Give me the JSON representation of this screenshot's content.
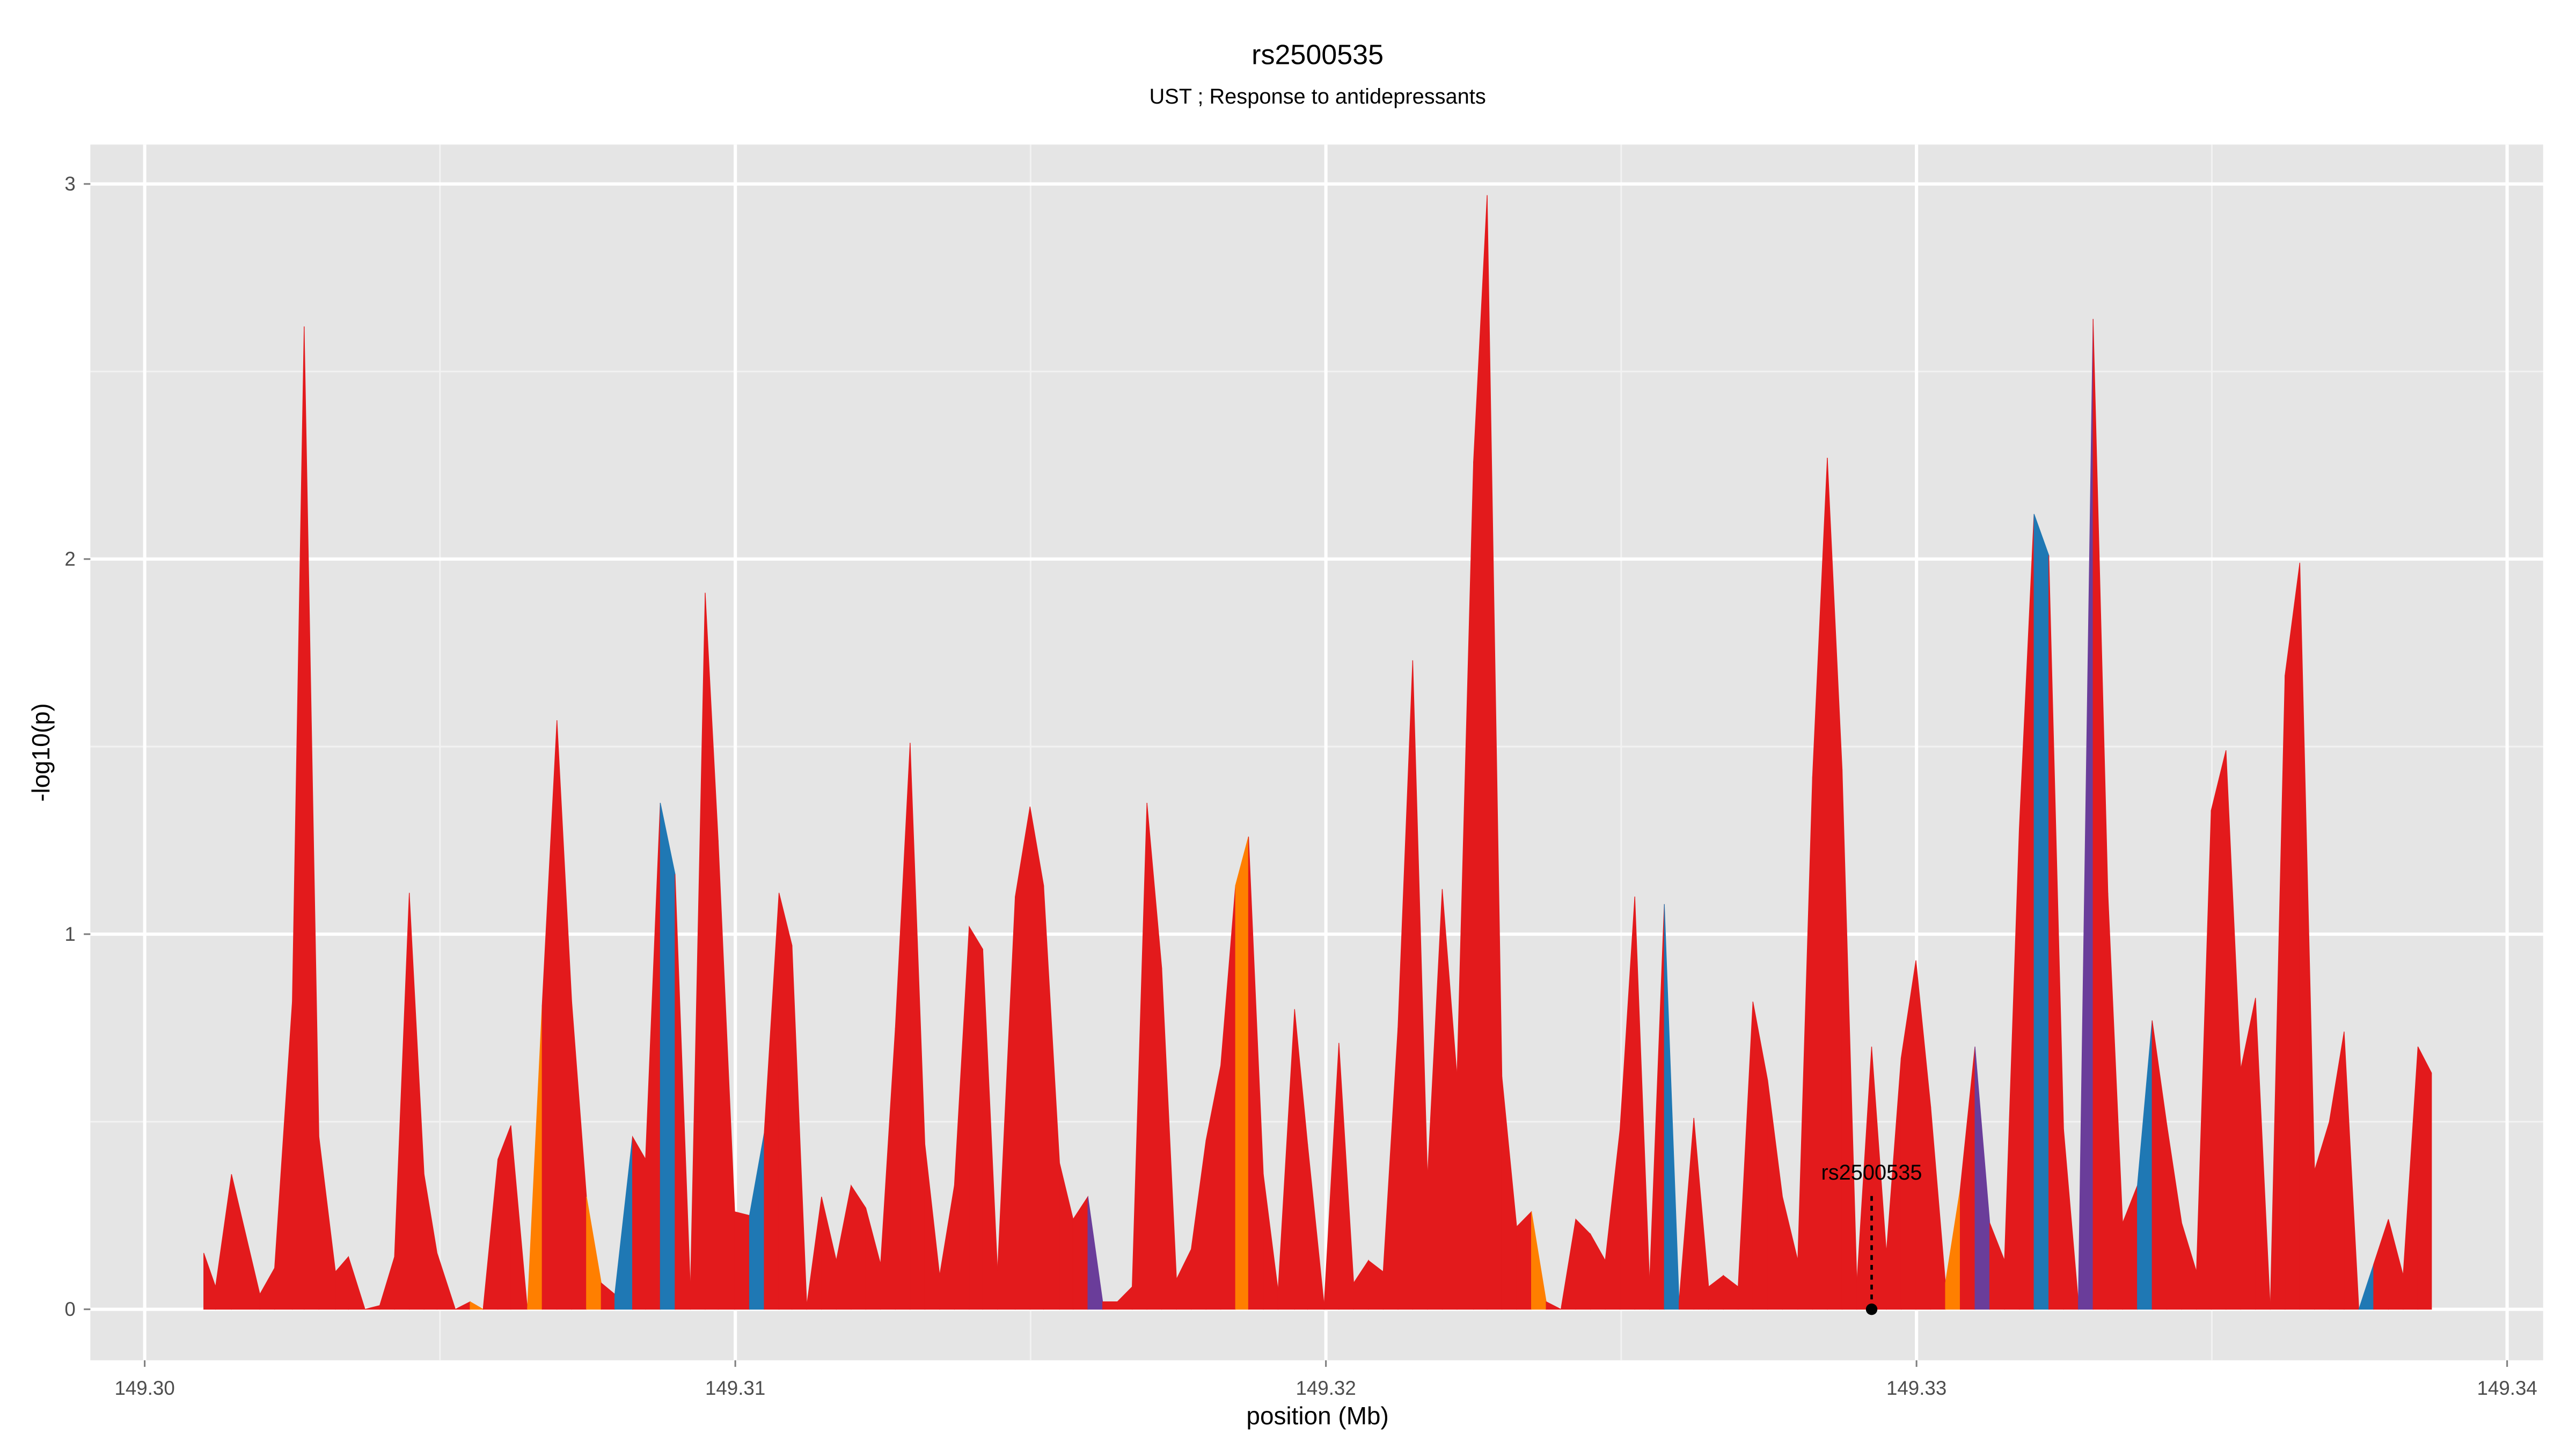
{
  "chart_data": {
    "type": "area",
    "title": "rs2500535",
    "subtitle": "UST ; Response to antidepressants",
    "x_label": "position (Mb)",
    "y_label": "-log10(p)",
    "xlim": [
      149.29908,
      149.34061
    ],
    "ylim": [
      -0.136,
      3.105
    ],
    "xticks": [
      {
        "value": 149.3,
        "label": "149.30"
      },
      {
        "value": 149.31,
        "label": "149.31"
      },
      {
        "value": 149.32,
        "label": "149.32"
      },
      {
        "value": 149.33,
        "label": "149.33"
      },
      {
        "value": 149.34,
        "label": "149.34"
      }
    ],
    "yticks": [
      0,
      1,
      2,
      3
    ],
    "grid": true,
    "x": [
      149.301,
      149.3012,
      149.30147,
      149.30195,
      149.3022,
      149.3025,
      149.3027,
      149.30295,
      149.30323,
      149.30345,
      149.30373,
      149.30398,
      149.30423,
      149.30448,
      149.30473,
      149.30495,
      149.30526,
      149.30551,
      149.30573,
      149.30598,
      149.3062,
      149.30648,
      149.30673,
      149.30698,
      149.30723,
      149.30748,
      149.30773,
      149.30796,
      149.30826,
      149.30848,
      149.30873,
      149.30898,
      149.30924,
      149.30949,
      149.30971,
      149.30999,
      149.31024,
      149.31049,
      149.31074,
      149.31096,
      149.31121,
      149.31146,
      149.31171,
      149.31196,
      149.31221,
      149.31246,
      149.31271,
      149.31296,
      149.31321,
      149.31346,
      149.31371,
      149.31396,
      149.31419,
      149.31444,
      149.31474,
      149.31499,
      149.31522,
      149.31549,
      149.31572,
      149.31597,
      149.31622,
      149.31647,
      149.31672,
      149.31697,
      149.31722,
      149.31747,
      149.31772,
      149.31797,
      149.31822,
      149.31847,
      149.31869,
      149.31894,
      149.31919,
      149.31947,
      149.31969,
      149.31997,
      149.32022,
      149.32047,
      149.32072,
      149.32097,
      149.32122,
      149.32147,
      149.32172,
      149.32197,
      149.32222,
      149.3225,
      149.32273,
      149.32298,
      149.32323,
      149.32348,
      149.32373,
      149.32398,
      149.32423,
      149.32448,
      149.32473,
      149.32498,
      149.32523,
      149.32548,
      149.32573,
      149.32598,
      149.32623,
      149.32648,
      149.32673,
      149.32698,
      149.32723,
      149.32748,
      149.32773,
      149.32799,
      149.32824,
      149.32849,
      149.32874,
      149.32899,
      149.32924,
      149.32949,
      149.32974,
      149.32999,
      149.33024,
      149.33049,
      149.33074,
      149.33099,
      149.33124,
      149.33149,
      149.33174,
      149.33199,
      149.33224,
      149.33249,
      149.33274,
      149.33299,
      149.33324,
      149.33349,
      149.33374,
      149.33399,
      149.33424,
      149.33449,
      149.33474,
      149.33499,
      149.33524,
      149.33549,
      149.33574,
      149.33599,
      149.33624,
      149.33649,
      149.33674,
      149.33699,
      149.33724,
      149.33749,
      149.33774,
      149.33799,
      149.33824,
      149.33849,
      149.33872
    ],
    "values": [
      0.15,
      0.06,
      0.36,
      0.04,
      0.11,
      0.82,
      2.62,
      0.46,
      0.1,
      0.14,
      0.0,
      0.01,
      0.14,
      1.11,
      0.36,
      0.15,
      0.0,
      0.02,
      0.0,
      0.4,
      0.49,
      0.0,
      0.81,
      1.57,
      0.82,
      0.3,
      0.07,
      0.04,
      0.46,
      0.4,
      1.35,
      1.16,
      0.05,
      1.91,
      1.25,
      0.26,
      0.25,
      0.47,
      1.11,
      0.97,
      0.01,
      0.3,
      0.13,
      0.33,
      0.27,
      0.12,
      0.75,
      1.51,
      0.44,
      0.09,
      0.33,
      1.02,
      0.96,
      0.1,
      1.1,
      1.34,
      1.13,
      0.39,
      0.24,
      0.3,
      0.02,
      0.02,
      0.06,
      1.35,
      0.91,
      0.08,
      0.16,
      0.45,
      0.65,
      1.13,
      1.26,
      0.36,
      0.05,
      0.8,
      0.44,
      0.01,
      0.71,
      0.07,
      0.13,
      0.1,
      0.75,
      1.73,
      0.35,
      1.12,
      0.62,
      2.26,
      2.97,
      0.62,
      0.22,
      0.26,
      0.02,
      0.0,
      0.24,
      0.2,
      0.13,
      0.48,
      1.1,
      0.07,
      1.08,
      0.02,
      0.51,
      0.06,
      0.09,
      0.06,
      0.82,
      0.61,
      0.3,
      0.13,
      1.42,
      2.27,
      1.44,
      0.07,
      0.7,
      0.15,
      0.67,
      0.93,
      0.54,
      0.07,
      0.32,
      0.7,
      0.23,
      0.13,
      1.28,
      2.12,
      2.01,
      0.48,
      0.02,
      2.64,
      1.11,
      0.23,
      0.33,
      0.77,
      0.49,
      0.23,
      0.1,
      1.33,
      1.49,
      0.64,
      0.83,
      0.0,
      1.69,
      1.99,
      0.37,
      0.5,
      0.74,
      0.0,
      0.12,
      0.24,
      0.09,
      0.7,
      0.63
    ],
    "colors": [
      "#e31a1c",
      "#e31a1c",
      "#e31a1c",
      "#e31a1c",
      "#e31a1c",
      "#e31a1c",
      "#e31a1c",
      "#e31a1c",
      "#e31a1c",
      "#e31a1c",
      "#e31a1c",
      "#e31a1c",
      "#e31a1c",
      "#e31a1c",
      "#e31a1c",
      "#e31a1c",
      "#e31a1c",
      "#ff7f00",
      "#e31a1c",
      "#e31a1c",
      "#e31a1c",
      "#ff7f00",
      "#e31a1c",
      "#e31a1c",
      "#e31a1c",
      "#ff7f00",
      "#e31a1c",
      "#1f78b4",
      "#e31a1c",
      "#e31a1c",
      "#1f78b4",
      "#e31a1c",
      "#e31a1c",
      "#e31a1c",
      "#e31a1c",
      "#e31a1c",
      "#1f78b4",
      "#e31a1c",
      "#e31a1c",
      "#e31a1c",
      "#e31a1c",
      "#e31a1c",
      "#e31a1c",
      "#e31a1c",
      "#e31a1c",
      "#e31a1c",
      "#e31a1c",
      "#e31a1c",
      "#e31a1c",
      "#e31a1c",
      "#e31a1c",
      "#e31a1c",
      "#e31a1c",
      "#e31a1c",
      "#e31a1c",
      "#e31a1c",
      "#e31a1c",
      "#e31a1c",
      "#e31a1c",
      "#6a3d9a",
      "#e31a1c",
      "#e31a1c",
      "#e31a1c",
      "#e31a1c",
      "#e31a1c",
      "#e31a1c",
      "#e31a1c",
      "#e31a1c",
      "#e31a1c",
      "#ff7f00",
      "#e31a1c",
      "#e31a1c",
      "#e31a1c",
      "#e31a1c",
      "#e31a1c",
      "#e31a1c",
      "#e31a1c",
      "#e31a1c",
      "#e31a1c",
      "#e31a1c",
      "#e31a1c",
      "#e31a1c",
      "#e31a1c",
      "#e31a1c",
      "#e31a1c",
      "#e31a1c",
      "#e31a1c",
      "#e31a1c",
      "#e31a1c",
      "#ff7f00",
      "#e31a1c",
      "#e31a1c",
      "#e31a1c",
      "#e31a1c",
      "#e31a1c",
      "#e31a1c",
      "#e31a1c",
      "#e31a1c",
      "#1f78b4",
      "#e31a1c",
      "#e31a1c",
      "#e31a1c",
      "#e31a1c",
      "#e31a1c",
      "#e31a1c",
      "#e31a1c",
      "#e31a1c",
      "#e31a1c",
      "#e31a1c",
      "#e31a1c",
      "#e31a1c",
      "#e31a1c",
      "#e31a1c",
      "#e31a1c",
      "#e31a1c",
      "#e31a1c",
      "#e31a1c",
      "#ff7f00",
      "#e31a1c",
      "#6a3d9a",
      "#e31a1c",
      "#e31a1c",
      "#e31a1c",
      "#1f78b4",
      "#e31a1c",
      "#e31a1c",
      "#6a3d9a",
      "#e31a1c",
      "#e31a1c",
      "#e31a1c",
      "#1f78b4",
      "#e31a1c",
      "#e31a1c",
      "#e31a1c",
      "#e31a1c",
      "#e31a1c",
      "#e31a1c",
      "#e31a1c",
      "#e31a1c",
      "#e31a1c",
      "#e31a1c",
      "#e31a1c",
      "#e31a1c",
      "#e31a1c",
      "#e31a1c",
      "#1f78b4",
      "#e31a1c",
      "#e31a1c",
      "#e31a1c",
      "#e31a1c",
      "#e31a1c"
    ],
    "annotation": {
      "label": "rs2500535",
      "x": 149.32924,
      "y": 0
    }
  }
}
